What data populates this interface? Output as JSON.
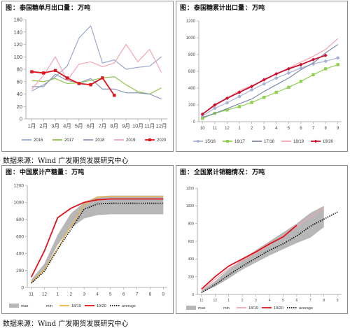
{
  "panels": [
    {
      "label": "图",
      "title": "泰国糖单月出口量",
      "unit": "万吨"
    },
    {
      "label": "图",
      "title": "泰国糖累计出口量",
      "unit": "万吨"
    },
    {
      "label": "图",
      "title": "中国累计产糖量",
      "unit": "万吨"
    },
    {
      "label": "图",
      "title": "全国累计销糖情况",
      "unit": "万吨"
    }
  ],
  "sources": [
    "数据来源：Wind 广发期货发展研究中心",
    "数据来源：Wind 广发期货发展研究中心"
  ],
  "chart_data": [
    {
      "type": "line",
      "title": "泰国糖单月出口量：万吨",
      "categories": [
        "1月",
        "2月",
        "3月",
        "4月",
        "5月",
        "6月",
        "7月",
        "8月",
        "9月",
        "10月",
        "11月",
        "12月"
      ],
      "ylim": [
        0,
        160
      ],
      "yticks": [
        0,
        20,
        40,
        60,
        80,
        100,
        120,
        140,
        160
      ],
      "legend": "bottom",
      "grid": false,
      "series": [
        {
          "name": "2016",
          "color": "#9aa7cf",
          "marker": "none",
          "values": [
            45,
            55,
            68,
            85,
            130,
            150,
            90,
            95,
            80,
            83,
            85,
            100
          ]
        },
        {
          "name": "2017",
          "color": "#8fc44a",
          "marker": "none",
          "values": [
            62,
            60,
            65,
            57,
            58,
            62,
            66,
            68,
            55,
            44,
            40,
            50
          ]
        },
        {
          "name": "2018",
          "color": "#8a98b8",
          "marker": "none",
          "values": [
            52,
            52,
            72,
            62,
            58,
            65,
            48,
            48,
            42,
            42,
            40,
            32
          ]
        },
        {
          "name": "2019",
          "color": "#f4a6b2",
          "marker": "none",
          "values": [
            48,
            70,
            100,
            62,
            88,
            92,
            84,
            90,
            120,
            92,
            112,
            75
          ]
        },
        {
          "name": "2020",
          "color": "#e0141e",
          "marker": "square",
          "values": [
            76,
            74,
            78,
            66,
            57,
            55,
            66,
            38,
            null,
            null,
            null,
            null
          ]
        }
      ]
    },
    {
      "type": "line",
      "title": "泰国糖累计出口量：万吨",
      "categories": [
        "10",
        "11",
        "12",
        "1",
        "2",
        "3",
        "4",
        "5",
        "6",
        "7",
        "8",
        "9"
      ],
      "ylim": [
        0,
        1200
      ],
      "yticks": [
        0,
        200,
        400,
        600,
        800,
        1000,
        1200
      ],
      "legend": "bottom",
      "grid": false,
      "series": [
        {
          "name": "15/16",
          "color": "#a7b4d9",
          "marker": "circle",
          "values": [
            70,
            160,
            225,
            300,
            380,
            450,
            520,
            580,
            640,
            690,
            720,
            760
          ]
        },
        {
          "name": "16/17",
          "color": "#8fd14f",
          "marker": "square",
          "values": [
            40,
            100,
            140,
            180,
            230,
            290,
            350,
            410,
            480,
            560,
            630,
            680
          ]
        },
        {
          "name": "17/18",
          "color": "#7f8bab",
          "marker": "none",
          "values": [
            50,
            100,
            155,
            215,
            270,
            360,
            440,
            520,
            620,
            700,
            820,
            920
          ]
        },
        {
          "name": "18/19",
          "color": "#f3a3b1",
          "marker": "none",
          "values": [
            90,
            190,
            280,
            370,
            430,
            490,
            570,
            640,
            710,
            780,
            860,
            990
          ]
        },
        {
          "name": "19/20",
          "color": "#c8102e",
          "marker": "diamond",
          "values": [
            90,
            200,
            280,
            350,
            420,
            500,
            570,
            630,
            680,
            740,
            790,
            null
          ]
        }
      ]
    },
    {
      "type": "area",
      "title": "中国累计产糖量：万吨",
      "categories": [
        "11",
        "12",
        "1",
        "2",
        "3",
        "4",
        "5",
        "6",
        "7",
        "8",
        "9"
      ],
      "ylim": [
        0,
        1200
      ],
      "yticks": [
        0,
        200,
        400,
        600,
        800,
        1000,
        1200
      ],
      "legend": "bottom",
      "grid": false,
      "series": [
        {
          "name": "max",
          "color": "#b3b3b3",
          "values": [
            90,
            280,
            620,
            870,
            1000,
            1070,
            1080,
            1080,
            1080,
            1080,
            1080
          ]
        },
        {
          "name": "min",
          "color": "#ffffff",
          "values": [
            40,
            200,
            500,
            700,
            810,
            850,
            860,
            860,
            860,
            860,
            860
          ]
        },
        {
          "name": "18/19",
          "color": "#f2b43a",
          "values": [
            60,
            210,
            460,
            720,
            970,
            1060,
            1070,
            1070,
            1070,
            1070,
            1070
          ]
        },
        {
          "name": "19/20",
          "color": "#e0141e",
          "values": [
            120,
            430,
            820,
            930,
            1000,
            1030,
            1040,
            1040,
            1040,
            1040,
            1040
          ]
        },
        {
          "name": "average",
          "color": "#111111",
          "values": [
            50,
            190,
            450,
            680,
            920,
            980,
            990,
            990,
            990,
            990,
            990
          ]
        }
      ]
    },
    {
      "type": "area",
      "title": "全国累计销糖情况：万吨",
      "categories": [
        "11",
        "12",
        "1",
        "2",
        "3",
        "4",
        "5",
        "6",
        "7",
        "8",
        "9"
      ],
      "ylim": [
        0,
        1200
      ],
      "yticks": [
        0,
        200,
        400,
        600,
        800,
        1000,
        1200
      ],
      "legend": "bottom",
      "grid": false,
      "series": [
        {
          "name": "max",
          "color": "#b3b3b3",
          "values": [
            40,
            150,
            280,
            400,
            500,
            600,
            700,
            800,
            920,
            1000,
            null
          ]
        },
        {
          "name": "min",
          "color": "#ffffff",
          "values": [
            20,
            90,
            180,
            280,
            360,
            440,
            510,
            580,
            640,
            760,
            820
          ]
        },
        {
          "name": "18/19",
          "color": "#f4a6b2",
          "values": [
            40,
            170,
            290,
            380,
            470,
            560,
            660,
            770,
            870,
            980,
            null
          ]
        },
        {
          "name": "19/20",
          "color": "#e0141e",
          "values": [
            60,
            200,
            320,
            400,
            480,
            570,
            650,
            780,
            null,
            null,
            null
          ]
        },
        {
          "name": "average",
          "color": "#111111",
          "values": [
            20,
            110,
            220,
            320,
            410,
            500,
            570,
            660,
            770,
            850,
            930
          ]
        }
      ]
    }
  ]
}
